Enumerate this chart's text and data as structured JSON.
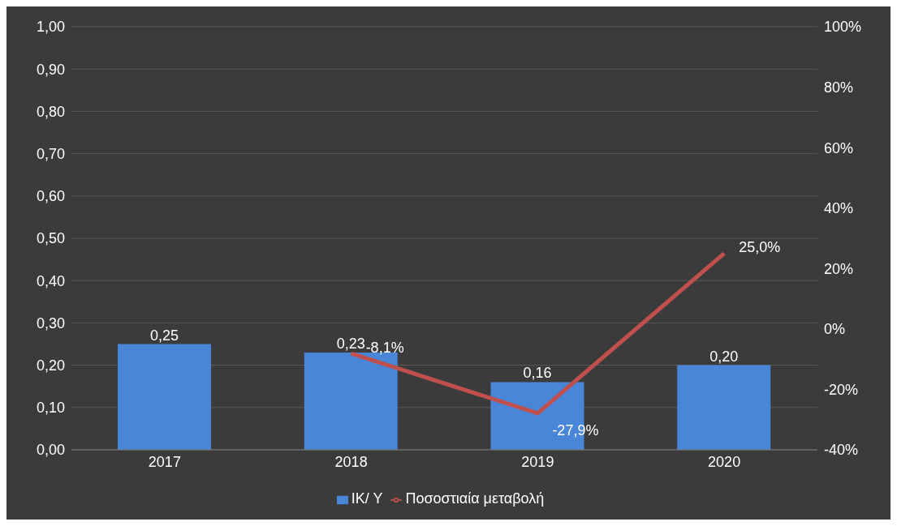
{
  "chart_data": {
    "type": "bar",
    "categories": [
      "2017",
      "2018",
      "2019",
      "2020"
    ],
    "series": [
      {
        "name": "ΙΚ/ Υ",
        "color": "#4a86d8",
        "values": [
          0.25,
          0.23,
          0.16,
          0.2
        ],
        "value_labels": [
          "0,25",
          "0,23",
          "0,16",
          "0,20"
        ]
      },
      {
        "name": "Ποσοστιαία μεταβολή",
        "type": "line",
        "axis": "y2",
        "color": "#c0504d",
        "values": [
          null,
          -8.1,
          -27.9,
          25.0
        ],
        "value_labels": [
          null,
          "-8,1%",
          "-27,9%",
          "25,0%"
        ]
      }
    ],
    "ylim": [
      0,
      1
    ],
    "yticks": [
      {
        "value": 0,
        "label": "0,00"
      },
      {
        "value": 0.1,
        "label": "0,10"
      },
      {
        "value": 0.2,
        "label": "0,20"
      },
      {
        "value": 0.3,
        "label": "0,30"
      },
      {
        "value": 0.4,
        "label": "0,40"
      },
      {
        "value": 0.5,
        "label": "0,50"
      },
      {
        "value": 0.6,
        "label": "0,60"
      },
      {
        "value": 0.7,
        "label": "0,70"
      },
      {
        "value": 0.8,
        "label": "0,80"
      },
      {
        "value": 0.9,
        "label": "0,90"
      },
      {
        "value": 1,
        "label": "1,00"
      }
    ],
    "y2lim": [
      -40,
      100
    ],
    "y2ticks": [
      {
        "value": -40,
        "label": "-40%"
      },
      {
        "value": -20,
        "label": "-20%"
      },
      {
        "value": 0,
        "label": "0%"
      },
      {
        "value": 20,
        "label": "20%"
      },
      {
        "value": 40,
        "label": "40%"
      },
      {
        "value": 60,
        "label": "60%"
      },
      {
        "value": 80,
        "label": "80%"
      },
      {
        "value": 100,
        "label": "100%"
      }
    ],
    "grid": "y",
    "legend": "bottom",
    "marker": "none",
    "line_style": "solid"
  }
}
